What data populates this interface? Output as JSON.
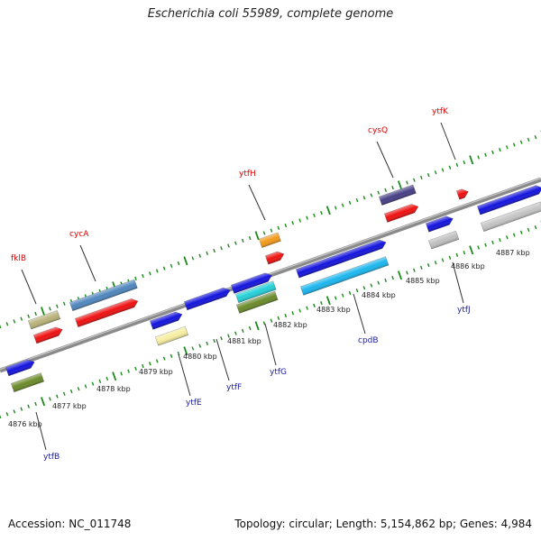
{
  "title": "Escherichia coli 55989, complete genome",
  "footer": {
    "accession": "Accession: NC_011748",
    "summary": "Topology: circular; Length: 5,154,862 bp; Genes: 4,984"
  },
  "scale_labels": [
    "4876 kbp",
    "4877 kbp",
    "4878 kbp",
    "4879 kbp",
    "4880 kbp",
    "4881 kbp",
    "4882 kbp",
    "4883 kbp",
    "4884 kbp",
    "4885 kbp",
    "4886 kbp",
    "4887 kbp"
  ],
  "genes_top": [
    "fklB",
    "cycA",
    "ytfH",
    "cysQ",
    "ytfK"
  ],
  "genes_bottom": [
    "ytfB",
    "ytfE",
    "ytfF",
    "ytfG",
    "cpdB",
    "ytfJ"
  ],
  "colors": {
    "backbone": "#8a8a8a",
    "tick_dots": "#1a8a1a",
    "label_top": "#dd0000",
    "label_bottom": "#1a1aa0",
    "leader": "#333333"
  }
}
